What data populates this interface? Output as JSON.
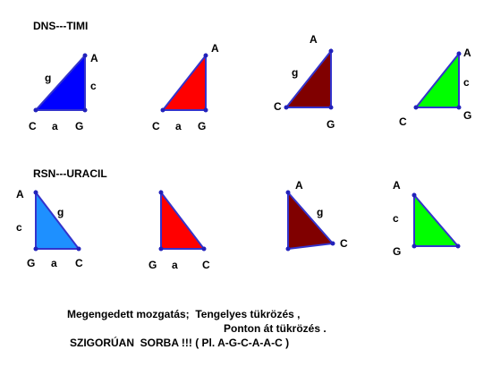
{
  "sections": [
    {
      "title": "DNS---TIMI",
      "triangles": [
        {
          "labels": [
            "A",
            "c",
            "g",
            "C",
            "a",
            "G"
          ]
        },
        {
          "labels": [
            "A",
            "C",
            "a",
            "G"
          ]
        },
        {
          "labels": [
            "A",
            "g",
            "C",
            "G"
          ]
        },
        {
          "labels": [
            "A",
            "c",
            "G",
            "C"
          ]
        }
      ]
    },
    {
      "title": "RSN---URACIL",
      "triangles": [
        {
          "labels": [
            "A",
            "c",
            "g",
            "G",
            "a",
            "C"
          ]
        },
        {
          "labels": [
            "G",
            "a",
            "C"
          ]
        },
        {
          "labels": [
            "A",
            "g",
            "C"
          ]
        },
        {
          "labels": [
            "A",
            "c",
            "G"
          ]
        }
      ]
    }
  ],
  "note": [
    "Megengedett mozgatás;  Tengelyes tükrözés ,",
    "Ponton át tükrözés .",
    "SZIGORÚAN  SORBA !!! ( Pl. A-G-C-A-A-C )"
  ]
}
